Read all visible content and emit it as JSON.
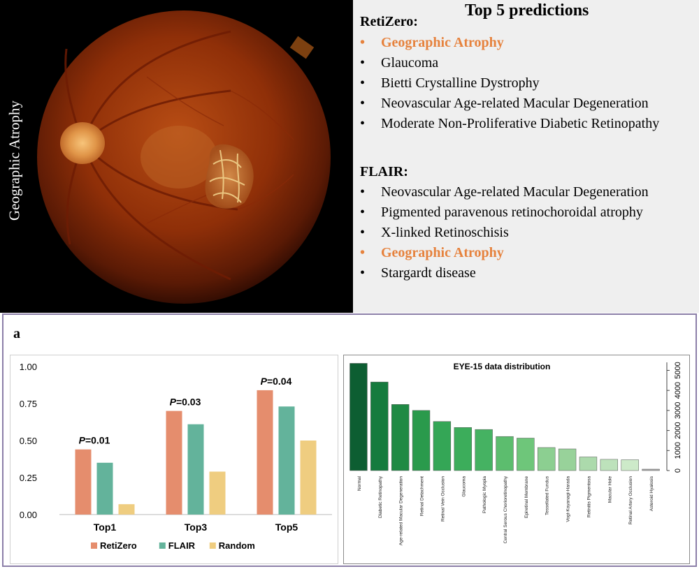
{
  "fundus": {
    "label": "Geographic Atrophy"
  },
  "predictions": {
    "title": "Top 5 predictions",
    "retizero": {
      "title": "RetiZero:",
      "items": [
        {
          "text": "Geographic Atrophy",
          "highlight": true
        },
        {
          "text": "Glaucoma",
          "highlight": false
        },
        {
          "text": "Bietti Crystalline Dystrophy",
          "highlight": false
        },
        {
          "text": "Neovascular Age-related Macular Degeneration",
          "highlight": false
        },
        {
          "text": "Moderate Non-Proliferative Diabetic Retinopathy",
          "highlight": false
        }
      ]
    },
    "flair": {
      "title": "FLAIR:",
      "items": [
        {
          "text": "Neovascular Age-related Macular Degeneration",
          "highlight": false
        },
        {
          "text": "Pigmented paravenous retinochoroidal atrophy",
          "highlight": false
        },
        {
          "text": "X-linked Retinoschisis",
          "highlight": false
        },
        {
          "text": "Geographic Atrophy",
          "highlight": true
        },
        {
          "text": "Stargardt disease",
          "highlight": false
        }
      ]
    },
    "bullet": "•",
    "highlight_color": "#e6823d"
  },
  "panel_label": "a",
  "chart_data": [
    {
      "type": "bar",
      "categories": [
        "Top1",
        "Top3",
        "Top5"
      ],
      "series": [
        {
          "name": "RetiZero",
          "color": "#e58d6d",
          "values": [
            0.44,
            0.7,
            0.84
          ]
        },
        {
          "name": "FLAIR",
          "color": "#63b39b",
          "values": [
            0.35,
            0.61,
            0.73
          ]
        },
        {
          "name": "Random",
          "color": "#efcd80",
          "values": [
            0.07,
            0.29,
            0.5
          ]
        }
      ],
      "annotations": [
        {
          "category": "Top1",
          "text_p": "P",
          "text_rest": "=0.01"
        },
        {
          "category": "Top3",
          "text_p": "P",
          "text_rest": "=0.03"
        },
        {
          "category": "Top5",
          "text_p": "P",
          "text_rest": "=0.04"
        }
      ],
      "yticks": [
        "0.00",
        "0.25",
        "0.50",
        "0.75",
        "1.00"
      ],
      "ylim": [
        0,
        1
      ],
      "legend_position": "bottom",
      "grid": false
    },
    {
      "type": "bar",
      "title": "EYE-15 data distribution",
      "categories": [
        "Normal",
        "Diabetic Retinopathy",
        "Age-related Macular Degeneration",
        "Retinal Detachment",
        "Retinal Vein Occlusion",
        "Glaucoma",
        "Pathologic Myopia",
        "Central Serous Chorioretinopathy",
        "Epiretinal Membrane",
        "Tessellated Fundus",
        "Vogt-Koyanagi-Harada",
        "Retinitis Pigmentosa",
        "Macular Hole",
        "Retinal Artery Occlusion",
        "Asteroid Hyalosis"
      ],
      "values": [
        5350,
        4420,
        3300,
        3000,
        2450,
        2150,
        2050,
        1700,
        1620,
        1150,
        1080,
        680,
        560,
        540,
        70
      ],
      "colors": [
        "#0d5e32",
        "#157b3e",
        "#1f8a44",
        "#2a9a4c",
        "#34a656",
        "#3cad5b",
        "#45b262",
        "#5cbd6e",
        "#6ec67a",
        "#8ccf91",
        "#98d29a",
        "#acdaac",
        "#bde2bb",
        "#cdeac9",
        "#aaaaaa"
      ],
      "yticks": [
        "0",
        "1000",
        "2000",
        "3000",
        "4000",
        "5000"
      ],
      "ylim": [
        0,
        5400
      ],
      "y_axis_side": "right",
      "grid": false
    }
  ]
}
